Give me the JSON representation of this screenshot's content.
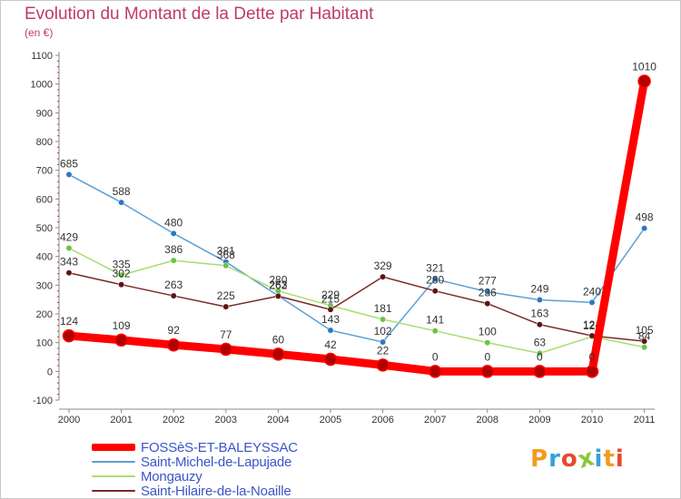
{
  "title": "Evolution du Montant de la Dette par Habitant",
  "subtitle": "(en €)",
  "logo_text": "Proxiti",
  "logo_colors": [
    "#f29b1d",
    "#3aa0d8",
    "#e8472e",
    "#8cc63f",
    "#3aa0d8",
    "#f29b1d",
    "#e8472e"
  ],
  "chart_data": {
    "type": "line",
    "x": [
      "2000",
      "2001",
      "2002",
      "2003",
      "2004",
      "2005",
      "2006",
      "2007",
      "2008",
      "2009",
      "2010",
      "2011"
    ],
    "ylim": [
      -100,
      1100
    ],
    "yticks": [
      "-100",
      "0",
      "100",
      "200",
      "300",
      "400",
      "500",
      "600",
      "700",
      "800",
      "900",
      "1000",
      "1100"
    ],
    "grid": false,
    "legend_position": "bottom-left",
    "series": [
      {
        "name": "FOSSèS-ET-BALEYSSAC",
        "color": "#ff0000",
        "marker": "#b00000",
        "values": [
          124,
          109,
          92,
          77,
          60,
          42,
          22,
          0,
          0,
          0,
          0,
          1010
        ],
        "labels": [
          "124",
          "109",
          "92",
          "77",
          "60",
          "42",
          "22",
          "0",
          "0",
          "0",
          "0",
          "1010"
        ]
      },
      {
        "name": "Saint-Michel-de-Lapujade",
        "color": "#5b9fd6",
        "marker": "#2f77c0",
        "values": [
          685,
          588,
          480,
          381,
          263,
          143,
          102,
          321,
          277,
          249,
          240,
          498
        ],
        "labels": [
          "685",
          "588",
          "480",
          "381",
          "263",
          "143",
          "102",
          "321",
          "277",
          "249",
          "240",
          "498"
        ]
      },
      {
        "name": "Mongauzy",
        "color": "#a6df6e",
        "marker": "#6cc24a",
        "values": [
          429,
          335,
          386,
          368,
          280,
          229,
          181,
          141,
          100,
          63,
          121,
          84
        ],
        "labels": [
          "429",
          "335",
          "386",
          "368",
          "280",
          "229",
          "181",
          "141",
          "100",
          "63",
          "121",
          "84"
        ]
      },
      {
        "name": "Saint-Hilaire-de-la-Noaille",
        "color": "#7a2a2a",
        "marker": "#5e1313",
        "values": [
          343,
          302,
          263,
          225,
          262,
          215,
          329,
          280,
          236,
          163,
          124,
          105
        ],
        "labels": [
          "343",
          "302",
          "263",
          "225",
          "262",
          "215",
          "329",
          "280",
          "236",
          "163",
          "124",
          "105"
        ]
      }
    ]
  }
}
